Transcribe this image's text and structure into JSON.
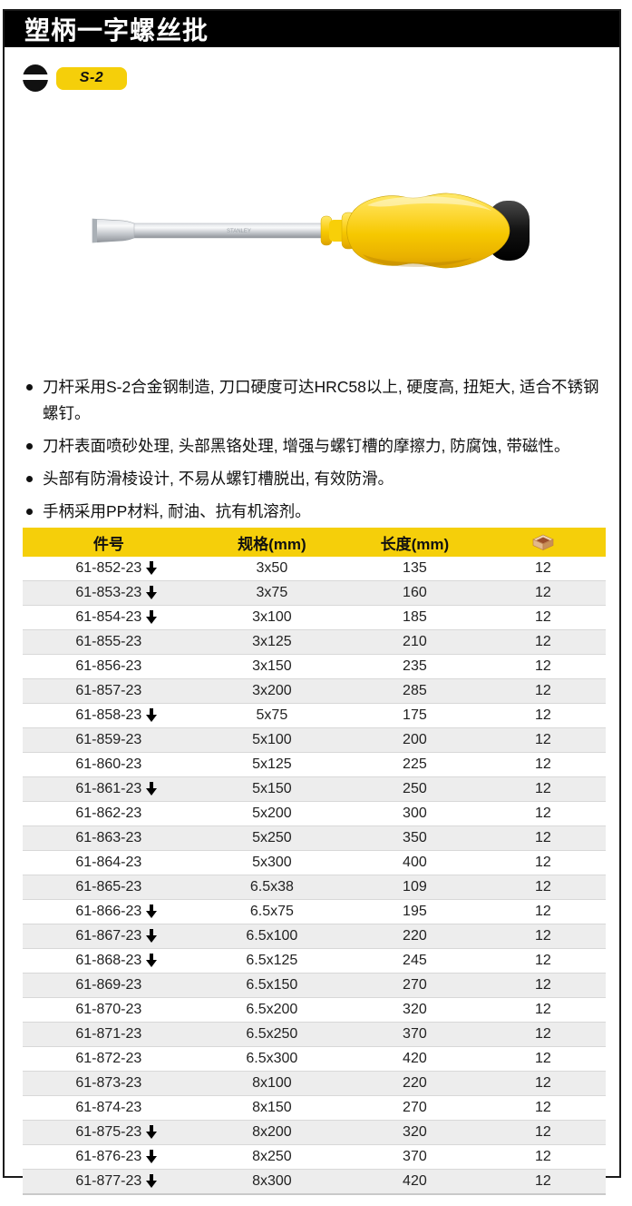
{
  "page": {
    "title": "塑柄一字螺丝批",
    "tip_badge": "S-2",
    "shaft_marking": "STANLEY",
    "features": [
      "刀杆采用S-2合金钢制造, 刀口硬度可达HRC58以上, 硬度高, 扭矩大, 适合不锈钢螺钉。",
      "刀杆表面喷砂处理, 头部黑铬处理, 增强与螺钉槽的摩擦力, 防腐蚀, 带磁性。",
      "头部有防滑棱设计, 不易从螺钉槽脱出, 有效防滑。",
      "手柄采用PP材料, 耐油、抗有机溶剂。"
    ],
    "table": {
      "col_part": "件号",
      "col_spec": "规格(mm)",
      "col_length": "长度(mm)",
      "col_pack_icon": "carton-box-icon",
      "rows": [
        {
          "part": "61-852-23",
          "new": true,
          "spec": "3x50",
          "length": "135",
          "qty": "12"
        },
        {
          "part": "61-853-23",
          "new": true,
          "spec": "3x75",
          "length": "160",
          "qty": "12"
        },
        {
          "part": "61-854-23",
          "new": true,
          "spec": "3x100",
          "length": "185",
          "qty": "12"
        },
        {
          "part": "61-855-23",
          "new": false,
          "spec": "3x125",
          "length": "210",
          "qty": "12"
        },
        {
          "part": "61-856-23",
          "new": false,
          "spec": "3x150",
          "length": "235",
          "qty": "12"
        },
        {
          "part": "61-857-23",
          "new": false,
          "spec": "3x200",
          "length": "285",
          "qty": "12"
        },
        {
          "part": "61-858-23",
          "new": true,
          "spec": "5x75",
          "length": "175",
          "qty": "12"
        },
        {
          "part": "61-859-23",
          "new": false,
          "spec": "5x100",
          "length": "200",
          "qty": "12"
        },
        {
          "part": "61-860-23",
          "new": false,
          "spec": "5x125",
          "length": "225",
          "qty": "12"
        },
        {
          "part": "61-861-23",
          "new": true,
          "spec": "5x150",
          "length": "250",
          "qty": "12"
        },
        {
          "part": "61-862-23",
          "new": false,
          "spec": "5x200",
          "length": "300",
          "qty": "12"
        },
        {
          "part": "61-863-23",
          "new": false,
          "spec": "5x250",
          "length": "350",
          "qty": "12"
        },
        {
          "part": "61-864-23",
          "new": false,
          "spec": "5x300",
          "length": "400",
          "qty": "12"
        },
        {
          "part": "61-865-23",
          "new": false,
          "spec": "6.5x38",
          "length": "109",
          "qty": "12"
        },
        {
          "part": "61-866-23",
          "new": true,
          "spec": "6.5x75",
          "length": "195",
          "qty": "12"
        },
        {
          "part": "61-867-23",
          "new": true,
          "spec": "6.5x100",
          "length": "220",
          "qty": "12"
        },
        {
          "part": "61-868-23",
          "new": true,
          "spec": "6.5x125",
          "length": "245",
          "qty": "12"
        },
        {
          "part": "61-869-23",
          "new": false,
          "spec": "6.5x150",
          "length": "270",
          "qty": "12"
        },
        {
          "part": "61-870-23",
          "new": false,
          "spec": "6.5x200",
          "length": "320",
          "qty": "12"
        },
        {
          "part": "61-871-23",
          "new": false,
          "spec": "6.5x250",
          "length": "370",
          "qty": "12"
        },
        {
          "part": "61-872-23",
          "new": false,
          "spec": "6.5x300",
          "length": "420",
          "qty": "12"
        },
        {
          "part": "61-873-23",
          "new": false,
          "spec": "8x100",
          "length": "220",
          "qty": "12"
        },
        {
          "part": "61-874-23",
          "new": false,
          "spec": "8x150",
          "length": "270",
          "qty": "12"
        },
        {
          "part": "61-875-23",
          "new": true,
          "spec": "8x200",
          "length": "320",
          "qty": "12"
        },
        {
          "part": "61-876-23",
          "new": true,
          "spec": "8x250",
          "length": "370",
          "qty": "12"
        },
        {
          "part": "61-877-23",
          "new": true,
          "spec": "8x300",
          "length": "420",
          "qty": "12"
        }
      ]
    },
    "colors": {
      "accent_yellow": "#F5CF0A",
      "titlebar_black": "#000000",
      "row_alt_gray": "#EDEDED"
    }
  }
}
